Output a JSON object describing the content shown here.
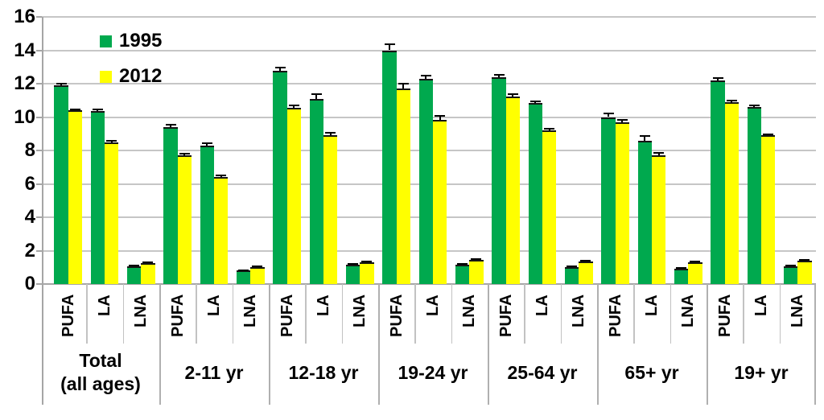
{
  "chart_data": {
    "type": "bar",
    "title": "",
    "xlabel": "",
    "ylabel": "",
    "ylim": [
      0,
      16
    ],
    "ytick_step": 2,
    "y_tick_labels": [
      "0",
      "2",
      "4",
      "6",
      "8",
      "10",
      "12",
      "14",
      "16"
    ],
    "grid": true,
    "legend_position": "top-left inside plot area",
    "error_bars": true,
    "series": [
      {
        "name": "1995",
        "color": "#00a94e"
      },
      {
        "name": "2012",
        "color": "#ffff00"
      }
    ],
    "categories": [
      "PUFA",
      "LA",
      "LNA"
    ],
    "groups": [
      {
        "label": "Total (all ages)",
        "label_lines": [
          "Total",
          "(all ages)"
        ],
        "bars": [
          {
            "cat": "PUFA",
            "values": [
              11.9,
              10.4
            ],
            "errors": [
              0.1,
              0.08
            ]
          },
          {
            "cat": "LA",
            "values": [
              10.35,
              8.5
            ],
            "errors": [
              0.1,
              0.08
            ]
          },
          {
            "cat": "LNA",
            "values": [
              1.05,
              1.25
            ],
            "errors": [
              0.04,
              0.04
            ]
          }
        ]
      },
      {
        "label": "2-11 yr",
        "label_lines": [
          "2-11 yr"
        ],
        "bars": [
          {
            "cat": "PUFA",
            "values": [
              9.4,
              7.7
            ],
            "errors": [
              0.15,
              0.12
            ]
          },
          {
            "cat": "LA",
            "values": [
              8.3,
              6.4
            ],
            "errors": [
              0.12,
              0.1
            ]
          },
          {
            "cat": "LNA",
            "values": [
              0.8,
              1.0
            ],
            "errors": [
              0.04,
              0.04
            ]
          }
        ]
      },
      {
        "label": "12-18 yr",
        "label_lines": [
          "12-18 yr"
        ],
        "bars": [
          {
            "cat": "PUFA",
            "values": [
              12.75,
              10.55
            ],
            "errors": [
              0.2,
              0.15
            ]
          },
          {
            "cat": "LA",
            "values": [
              11.1,
              8.9
            ],
            "errors": [
              0.25,
              0.15
            ]
          },
          {
            "cat": "LNA",
            "values": [
              1.15,
              1.3
            ],
            "errors": [
              0.05,
              0.04
            ]
          }
        ]
      },
      {
        "label": "19-24 yr",
        "label_lines": [
          "19-24 yr"
        ],
        "bars": [
          {
            "cat": "PUFA",
            "values": [
              14.0,
              11.7
            ],
            "errors": [
              0.35,
              0.3
            ]
          },
          {
            "cat": "LA",
            "values": [
              12.3,
              9.85
            ],
            "errors": [
              0.2,
              0.2
            ]
          },
          {
            "cat": "LNA",
            "values": [
              1.15,
              1.45
            ],
            "errors": [
              0.06,
              0.05
            ]
          }
        ]
      },
      {
        "label": "25-64 yr",
        "label_lines": [
          "25-64 yr"
        ],
        "bars": [
          {
            "cat": "PUFA",
            "values": [
              12.4,
              11.25
            ],
            "errors": [
              0.12,
              0.1
            ]
          },
          {
            "cat": "LA",
            "values": [
              10.85,
              9.2
            ],
            "errors": [
              0.1,
              0.08
            ]
          },
          {
            "cat": "LNA",
            "values": [
              1.0,
              1.35
            ],
            "errors": [
              0.04,
              0.04
            ]
          }
        ]
      },
      {
        "label": "65+ yr",
        "label_lines": [
          "65+ yr"
        ],
        "bars": [
          {
            "cat": "PUFA",
            "values": [
              10.0,
              9.7
            ],
            "errors": [
              0.2,
              0.12
            ]
          },
          {
            "cat": "LA",
            "values": [
              8.6,
              7.7
            ],
            "errors": [
              0.25,
              0.15
            ]
          },
          {
            "cat": "LNA",
            "values": [
              0.9,
              1.3
            ],
            "errors": [
              0.05,
              0.04
            ]
          }
        ]
      },
      {
        "label": "19+ yr",
        "label_lines": [
          "19+ yr"
        ],
        "bars": [
          {
            "cat": "PUFA",
            "values": [
              12.2,
              10.9
            ],
            "errors": [
              0.12,
              0.1
            ]
          },
          {
            "cat": "LA",
            "values": [
              10.6,
              8.9
            ],
            "errors": [
              0.1,
              0.08
            ]
          },
          {
            "cat": "LNA",
            "values": [
              1.05,
              1.4
            ],
            "errors": [
              0.04,
              0.04
            ]
          }
        ]
      }
    ],
    "colors": {
      "background": "#ffffff",
      "gridline": "#c6c6c6",
      "axis": "#a6a6a6",
      "group_separator": "#b0b0b0",
      "category_separator": "#c2c2c2",
      "error_bar": "#000000",
      "text": "#000000"
    }
  }
}
